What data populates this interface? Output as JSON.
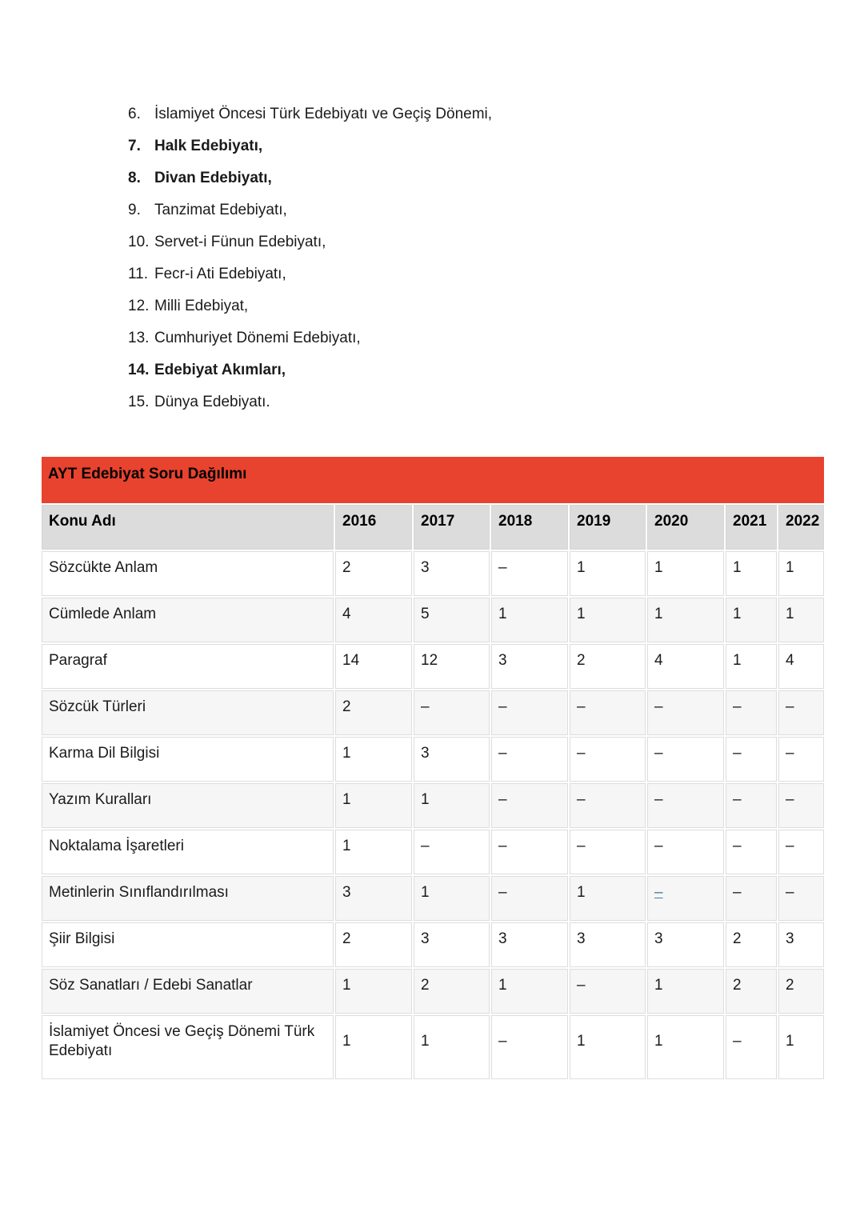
{
  "page": {
    "background": "#ffffff",
    "text_color": "#1b1b1b"
  },
  "topic_list": {
    "items": [
      {
        "num": "6.",
        "label": "İslamiyet Öncesi Türk Edebiyatı ve Geçiş Dönemi,",
        "bold": false
      },
      {
        "num": "7.",
        "label": "Halk Edebiyatı,",
        "bold": true
      },
      {
        "num": "8.",
        "label": "Divan Edebiyatı,",
        "bold": true
      },
      {
        "num": "9.",
        "label": "Tanzimat Edebiyatı,",
        "bold": false
      },
      {
        "num": "10.",
        "label": "Servet-i Fünun Edebiyatı,",
        "bold": false
      },
      {
        "num": "11.",
        "label": "Fecr-i Ati Edebiyatı,",
        "bold": false
      },
      {
        "num": "12.",
        "label": "Milli Edebiyat,",
        "bold": false
      },
      {
        "num": "13.",
        "label": "Cumhuriyet Dönemi Edebiyatı,",
        "bold": false
      },
      {
        "num": "14.",
        "label": "Edebiyat Akımları,",
        "bold": true
      },
      {
        "num": "15.",
        "label": "Dünya Edebiyatı.",
        "bold": false
      }
    ]
  },
  "table": {
    "title": "AYT Edebiyat Soru Dağılımı",
    "columns": [
      "Konu Adı",
      "2016",
      "2017",
      "2018",
      "2019",
      "2020",
      "2021",
      "2022"
    ],
    "rows": [
      {
        "topic": "Sözcükte Anlam",
        "values": [
          "2",
          "3",
          "–",
          "1",
          "1",
          "1",
          "1"
        ]
      },
      {
        "topic": "Cümlede Anlam",
        "values": [
          "4",
          "5",
          "1",
          "1",
          "1",
          "1",
          "1"
        ]
      },
      {
        "topic": "Paragraf",
        "values": [
          "14",
          "12",
          "3",
          "2",
          "4",
          "1",
          "4"
        ]
      },
      {
        "topic": "Sözcük Türleri",
        "values": [
          "2",
          "–",
          "–",
          "–",
          "–",
          "–",
          "–"
        ]
      },
      {
        "topic": "Karma Dil Bilgisi",
        "values": [
          "1",
          "3",
          "–",
          "–",
          "–",
          "–",
          "–"
        ]
      },
      {
        "topic": "Yazım Kuralları",
        "values": [
          "1",
          "1",
          "–",
          "–",
          "–",
          "–",
          "–"
        ]
      },
      {
        "topic": "Noktalama İşaretleri",
        "values": [
          "1",
          "–",
          "–",
          "–",
          "–",
          "–",
          "–"
        ]
      },
      {
        "topic": "Metinlerin Sınıflandırılması",
        "values": [
          "3",
          "1",
          "–",
          "1",
          "–",
          "–",
          "–"
        ]
      },
      {
        "topic": "Şiir Bilgisi",
        "values": [
          "2",
          "3",
          "3",
          "3",
          "3",
          "2",
          "3"
        ]
      },
      {
        "topic": "Söz Sanatları / Edebi Sanatlar",
        "values": [
          "1",
          "2",
          "1",
          "–",
          "1",
          "2",
          "2"
        ]
      },
      {
        "topic": "İslamiyet Öncesi ve Geçiş Dönemi Türk Edebiyatı",
        "values": [
          "1",
          "1",
          "–",
          "1",
          "1",
          "–",
          "1"
        ]
      }
    ],
    "link_cell": {
      "row_index": 7,
      "col_index": 4,
      "text": "–"
    },
    "colors": {
      "header_bar": "#e8432f",
      "column_header_bg": "#dcdcdc",
      "alt_row_bg": "#f6f6f6",
      "border": "#dddddd",
      "link": "#3d7dab"
    }
  }
}
